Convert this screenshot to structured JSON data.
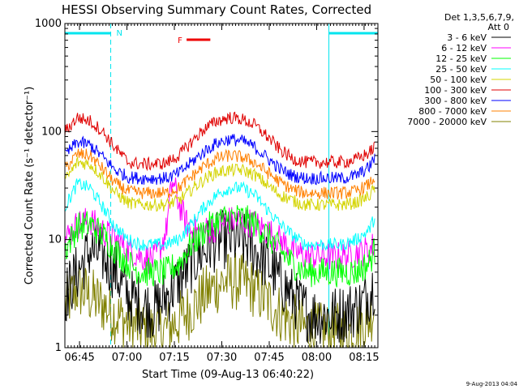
{
  "chart_data": {
    "type": "line",
    "title": "HESSI Observing Summary Count Rates, Corrected",
    "xlabel": "Start Time (09-Aug-13 06:40:22)",
    "ylabel": "Corrected Count Rate (s⁻¹ detector⁻¹)",
    "yscale": "log",
    "ylim": [
      1,
      1000
    ],
    "xlim_minutes_after_start": [
      0,
      99
    ],
    "x_tick_labels": [
      "06:45",
      "07:00",
      "07:15",
      "07:30",
      "07:45",
      "08:00",
      "08:15"
    ],
    "x_tick_minutes": [
      4.63,
      19.63,
      34.63,
      49.63,
      64.63,
      79.63,
      94.63
    ],
    "y_tick_labels": [
      "1",
      "10",
      "100",
      "1000"
    ],
    "y_tick_values": [
      1,
      10,
      100,
      1000
    ],
    "legend_header": [
      "Det 1,3,5,6,7,9,",
      "Att 0"
    ],
    "legend_position": "right",
    "series": [
      {
        "name": "3 - 6 keV",
        "color": "#000000",
        "x": [
          0,
          4,
          8,
          12,
          16,
          20,
          24,
          28,
          30,
          34,
          38,
          42,
          46,
          50,
          54,
          58,
          62,
          66,
          70,
          74,
          78,
          82,
          86,
          90,
          94,
          98
        ],
        "y": [
          3,
          5,
          8,
          7,
          5,
          3,
          2.5,
          2.2,
          2.5,
          3.5,
          5,
          7,
          9,
          10,
          10,
          9,
          7,
          5,
          3.5,
          2.5,
          2,
          2,
          2,
          2.2,
          2.5,
          4
        ]
      },
      {
        "name": "6 - 12 keV",
        "color": "#ff00ff",
        "x": [
          0,
          4,
          8,
          12,
          16,
          20,
          24,
          28,
          30,
          32,
          34,
          36,
          38,
          40,
          44,
          48,
          52,
          56,
          60,
          64,
          68,
          72,
          76,
          80,
          84,
          88,
          92,
          96,
          98
        ],
        "y": [
          10,
          14,
          15,
          12,
          10,
          8,
          7,
          6.5,
          8,
          12,
          35,
          22,
          15,
          12,
          12,
          13,
          15,
          15,
          14,
          12,
          10,
          8,
          7,
          7,
          7,
          7,
          7.5,
          8,
          9
        ]
      },
      {
        "name": "12 - 25 keV",
        "color": "#00ff00",
        "x": [
          0,
          4,
          8,
          12,
          16,
          20,
          24,
          28,
          32,
          36,
          40,
          44,
          48,
          52,
          56,
          60,
          64,
          68,
          72,
          76,
          80,
          84,
          88,
          92,
          96,
          98
        ],
        "y": [
          8,
          13,
          14,
          11,
          8,
          6,
          5,
          5,
          5,
          6,
          9,
          12,
          15,
          16,
          16,
          14,
          11,
          8,
          6,
          5,
          5,
          5,
          5,
          5,
          6,
          8
        ]
      },
      {
        "name": "25 - 50 keV",
        "color": "#00ffff",
        "x": [
          0,
          4,
          8,
          12,
          16,
          20,
          24,
          28,
          32,
          36,
          40,
          44,
          48,
          52,
          56,
          60,
          64,
          68,
          72,
          76,
          80,
          84,
          88,
          92,
          96,
          98
        ],
        "y": [
          20,
          33,
          30,
          20,
          13,
          10,
          9,
          9,
          9,
          10,
          14,
          20,
          26,
          30,
          30,
          26,
          19,
          14,
          11,
          9,
          9,
          9,
          9,
          10,
          12,
          16
        ]
      },
      {
        "name": "50 - 100 keV",
        "color": "#d4d400",
        "x": [
          0,
          4,
          8,
          12,
          16,
          20,
          24,
          28,
          32,
          36,
          40,
          44,
          48,
          52,
          56,
          60,
          64,
          68,
          72,
          76,
          80,
          84,
          88,
          92,
          96,
          98
        ],
        "y": [
          35,
          52,
          50,
          38,
          27,
          22,
          21,
          21,
          21,
          23,
          29,
          36,
          42,
          44,
          44,
          40,
          32,
          26,
          23,
          21,
          21,
          21,
          21,
          22,
          25,
          30
        ]
      },
      {
        "name": "100 - 300 keV",
        "color": "#e00000",
        "x": [
          0,
          4,
          8,
          12,
          16,
          20,
          24,
          28,
          32,
          36,
          40,
          44,
          48,
          52,
          56,
          60,
          64,
          68,
          72,
          76,
          80,
          84,
          88,
          92,
          96,
          98
        ],
        "y": [
          100,
          135,
          125,
          100,
          70,
          52,
          50,
          50,
          51,
          60,
          80,
          105,
          125,
          135,
          130,
          115,
          90,
          68,
          56,
          52,
          52,
          52,
          52,
          55,
          63,
          72
        ]
      },
      {
        "name": "300 - 800 keV",
        "color": "#0000ff",
        "x": [
          0,
          4,
          8,
          12,
          16,
          20,
          24,
          28,
          32,
          36,
          40,
          44,
          48,
          52,
          56,
          60,
          64,
          68,
          72,
          76,
          80,
          84,
          88,
          92,
          96,
          98
        ],
        "y": [
          60,
          80,
          75,
          58,
          44,
          38,
          37,
          37,
          37,
          41,
          52,
          65,
          78,
          85,
          82,
          72,
          57,
          45,
          39,
          37,
          37,
          37,
          37,
          39,
          46,
          57
        ]
      },
      {
        "name": "800 - 7000 keV",
        "color": "#ff8000",
        "x": [
          0,
          4,
          8,
          12,
          16,
          20,
          24,
          28,
          32,
          36,
          40,
          44,
          48,
          52,
          56,
          60,
          64,
          68,
          72,
          76,
          80,
          84,
          88,
          92,
          96,
          98
        ],
        "y": [
          45,
          62,
          60,
          45,
          33,
          28,
          27,
          27,
          27,
          30,
          38,
          48,
          56,
          60,
          58,
          52,
          42,
          34,
          29,
          27,
          27,
          27,
          27,
          28,
          32,
          38
        ]
      },
      {
        "name": "7000 - 20000 keV",
        "color": "#808000",
        "x": [
          0,
          4,
          8,
          12,
          16,
          20,
          24,
          28,
          32,
          36,
          40,
          44,
          48,
          52,
          56,
          60,
          64,
          68,
          72,
          76,
          80,
          84,
          88,
          92,
          96,
          98
        ],
        "y": [
          2.5,
          3.5,
          3,
          2.5,
          2,
          1.7,
          1.5,
          1.4,
          1.5,
          1.8,
          2.3,
          3,
          3.8,
          4.2,
          4,
          3.5,
          2.7,
          2.1,
          1.7,
          1.5,
          1.4,
          1.4,
          1.4,
          1.5,
          1.8,
          2.5
        ]
      }
    ],
    "night_markers": {
      "label": "N",
      "color": "#00e5ee",
      "intervals": [
        [
          0,
          14.5
        ],
        [
          83.5,
          99
        ]
      ]
    },
    "flare_marker": {
      "label": "F",
      "color": "#ee0000",
      "interval": [
        38.5,
        46
      ]
    }
  },
  "footer_timestamp": "9-Aug-2013 04:04"
}
